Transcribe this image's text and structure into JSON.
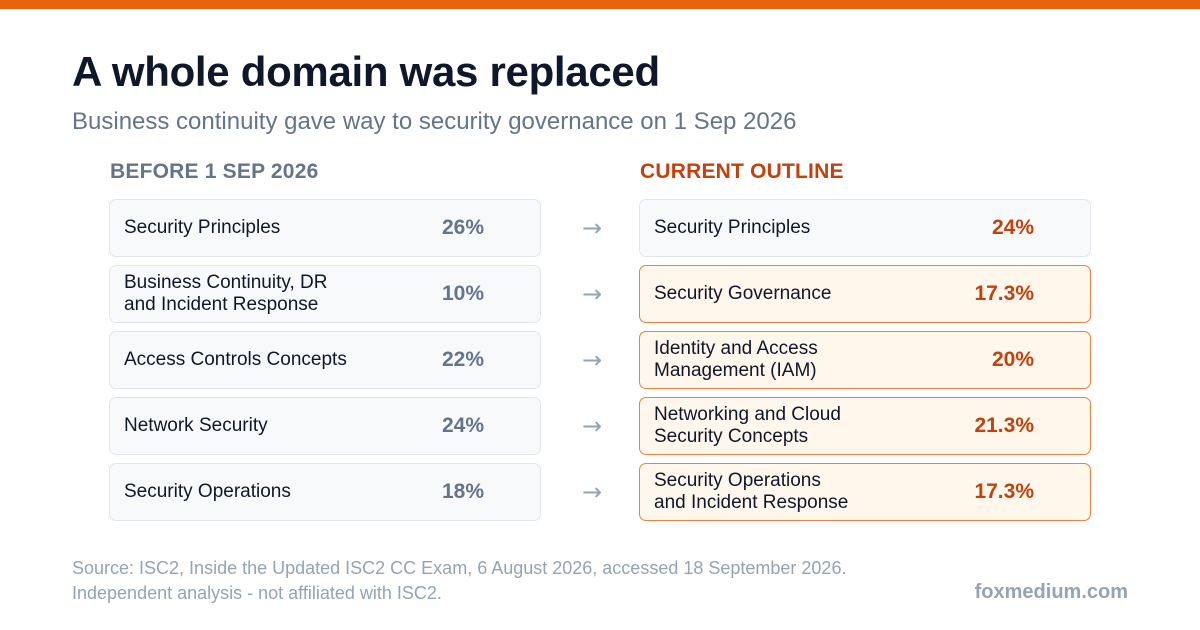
{
  "colors": {
    "accent": "#e8630c",
    "current_text": "#c2410c",
    "changed_border": "#e8823f",
    "changed_fill": "#fff6ec",
    "muted": "#64748b"
  },
  "title": "A whole domain was replaced",
  "subtitle": "Business continuity gave way to security governance on 1 Sep 2026",
  "columns": {
    "before": "BEFORE 1 SEP 2026",
    "current": "CURRENT OUTLINE"
  },
  "arrow_glyph": "→",
  "rows": [
    {
      "before": {
        "label": "Security Principles",
        "pct": "26%"
      },
      "current": {
        "label": "Security Principles",
        "pct": "24%",
        "changed": false
      }
    },
    {
      "before": {
        "label": "Business Continuity, DR\nand Incident Response",
        "pct": "10%"
      },
      "current": {
        "label": "Security Governance",
        "pct": "17.3%",
        "changed": true
      }
    },
    {
      "before": {
        "label": "Access Controls Concepts",
        "pct": "22%"
      },
      "current": {
        "label": "Identity and Access\nManagement (IAM)",
        "pct": "20%",
        "changed": true
      }
    },
    {
      "before": {
        "label": "Network Security",
        "pct": "24%"
      },
      "current": {
        "label": "Networking and Cloud\nSecurity Concepts",
        "pct": "21.3%",
        "changed": true
      }
    },
    {
      "before": {
        "label": "Security Operations",
        "pct": "18%"
      },
      "current": {
        "label": "Security Operations\nand Incident Response",
        "pct": "17.3%",
        "changed": true
      }
    }
  ],
  "footer": {
    "source": "Source: ISC2, Inside the Updated ISC2 CC Exam, 6 August 2026, accessed 18 September 2026.",
    "disclaimer": "Independent analysis - not affiliated with ISC2.",
    "brand": "foxmedium.com"
  }
}
